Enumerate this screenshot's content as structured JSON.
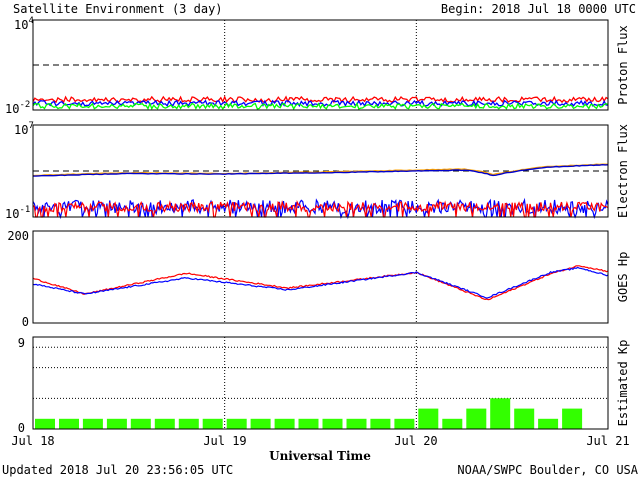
{
  "header": {
    "title": "Satellite Environment (3 day)",
    "begin_label": "Begin:  2018 Jul 18 0000 UTC"
  },
  "footer": {
    "updated": "Updated 2018 Jul 20 23:56:05 UTC",
    "credit": "NOAA/SWPC Boulder, CO USA"
  },
  "chart_data": [
    {
      "type": "line",
      "ylabel": "Proton Flux",
      "yscale": "log",
      "ylim": [
        0.01,
        10000
      ],
      "ticks": [
        {
          "base": "10",
          "exp": "4"
        },
        {
          "base": "10",
          "exp": "-2"
        }
      ],
      "threshold": 10,
      "series": [
        {
          "color": "#ff0000",
          "level": 0.05
        },
        {
          "color": "#0000ff",
          "level": 0.028
        },
        {
          "color": "#00ff00",
          "level": 0.018
        }
      ]
    },
    {
      "type": "line",
      "ylabel": "Electron Flux",
      "yscale": "log",
      "ylim": [
        0.1,
        10000000
      ],
      "ticks": [
        {
          "base": "10",
          "exp": "7"
        },
        {
          "base": "10",
          "exp": "-1"
        }
      ],
      "threshold": 1000,
      "series": [
        {
          "color": "#ffa500",
          "x": [
            0,
            0.5,
            1,
            1.5,
            2,
            2.25,
            2.4,
            2.5,
            2.7,
            3
          ],
          "y": [
            400,
            700,
            600,
            800,
            1200,
            1500,
            500,
            900,
            2500,
            4000
          ]
        },
        {
          "color": "#0000cc",
          "x": [
            0,
            0.5,
            1,
            1.5,
            2,
            2.25,
            2.4,
            2.5,
            2.7,
            3
          ],
          "y": [
            350,
            600,
            550,
            700,
            1000,
            1200,
            400,
            800,
            2200,
            3500
          ]
        },
        {
          "color": "#ff0000",
          "band": [
            0.3,
            2
          ]
        },
        {
          "color": "#0000ff",
          "band": [
            0.2,
            3
          ]
        }
      ]
    },
    {
      "type": "line",
      "ylabel": "GOES Hp",
      "yscale": "linear",
      "ylim": [
        0,
        200
      ],
      "ticks": [
        "200",
        "0"
      ],
      "series": [
        {
          "color": "#ff0000",
          "x": [
            0,
            0.27,
            0.8,
            1.33,
            2,
            2.37,
            2.7,
            2.85,
            3
          ],
          "y": [
            97,
            63,
            108,
            76,
            110,
            50,
            107,
            125,
            112
          ]
        },
        {
          "color": "#0000ff",
          "x": [
            0,
            0.27,
            0.8,
            1.33,
            2,
            2.37,
            2.7,
            2.85,
            3
          ],
          "y": [
            85,
            63,
            98,
            72,
            110,
            55,
            110,
            120,
            103
          ]
        }
      ]
    },
    {
      "type": "bar",
      "ylabel": "Estimated Kp",
      "ylim": [
        0,
        9
      ],
      "ticks": [
        "9",
        "0"
      ],
      "bar_color": "#33ff00",
      "values": [
        1,
        1,
        1,
        1,
        1,
        1,
        1,
        1,
        1,
        1,
        1,
        1,
        1,
        1,
        1,
        1,
        2,
        1,
        2,
        3,
        2,
        1,
        2,
        0
      ]
    }
  ],
  "xaxis": {
    "ticks": [
      "Jul 18",
      "Jul 19",
      "Jul 20",
      "Jul 21"
    ],
    "label": "Universal Time"
  }
}
